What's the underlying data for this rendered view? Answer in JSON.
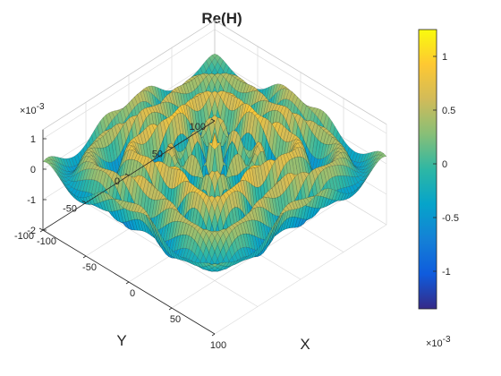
{
  "chart_data": {
    "type": "surface",
    "title": "Re(H)",
    "xlabel": "X",
    "ylabel": "Y",
    "zlabel": "",
    "xlim": [
      -100,
      100
    ],
    "ylim": [
      -100,
      100
    ],
    "zlim": [
      -0.002,
      0.0013
    ],
    "xticks": [
      -100,
      -50,
      0,
      50,
      100
    ],
    "yticks": [
      -100,
      -50,
      0,
      50,
      100
    ],
    "zticks": [
      -2,
      -1,
      0,
      1
    ],
    "z_exponent_label": "×10",
    "z_exponent_power": "-3",
    "colorbar": {
      "colormap": "parula",
      "limits": [
        -0.00135,
        0.00125
      ],
      "ticks": [
        -1,
        -0.5,
        0,
        0.5,
        1
      ],
      "exponent_label": "×10",
      "exponent_power": "-3"
    },
    "surface_description_values": {
      "grid_points_per_axis": 61,
      "center_peak": 0.0012,
      "ring_minimum": -0.0013,
      "edge_level": 0.0
    },
    "grid": true,
    "legend": "none",
    "colors": {
      "parula": [
        "#352a87",
        "#0f5cdd",
        "#1481d6",
        "#06a4ca",
        "#2eb7a4",
        "#87bf77",
        "#d1bb59",
        "#fec832",
        "#f9fb0e"
      ],
      "edge": "#1a1a1a",
      "axis": "#262626",
      "grid": "#dcdcdc"
    }
  }
}
